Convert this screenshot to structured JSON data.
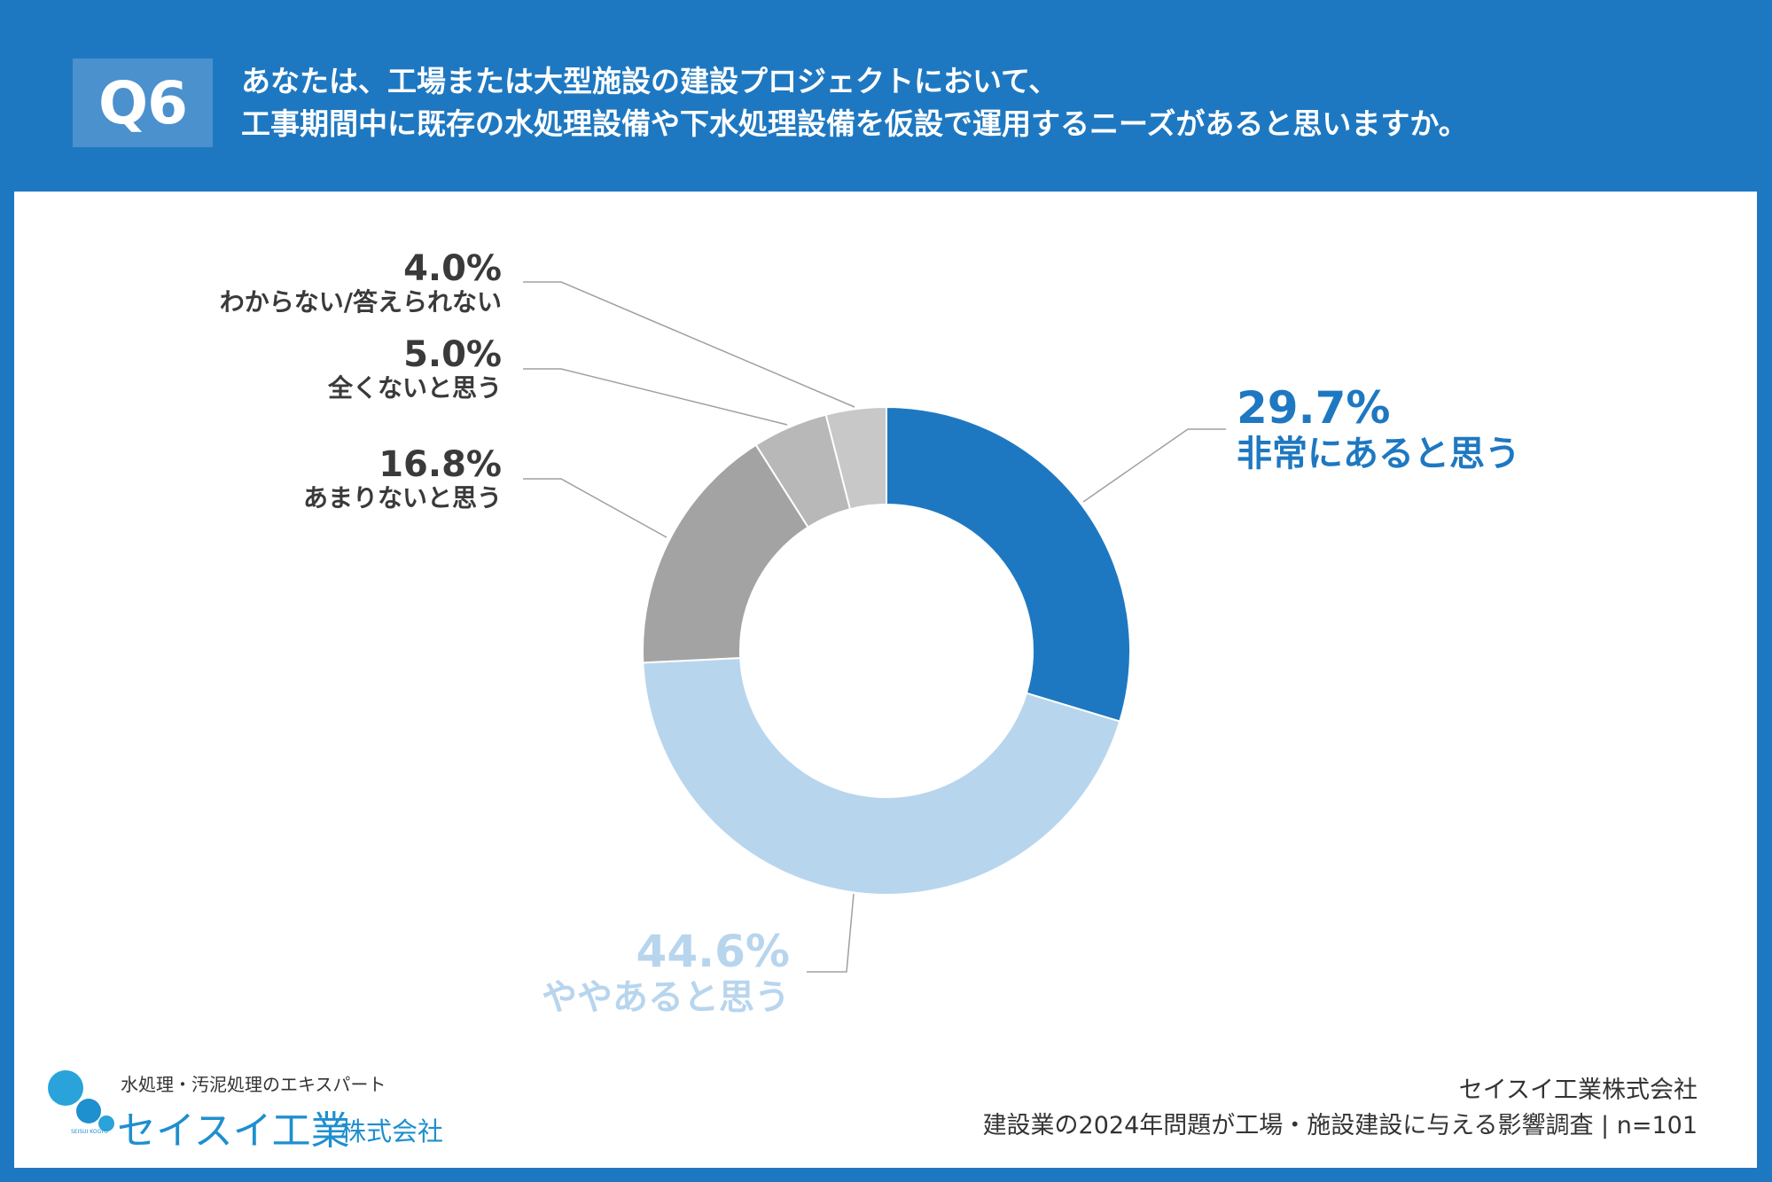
{
  "header": {
    "badge": "Q6",
    "question_line1": "あなたは、工場または大型施設の建設プロジェクトにおいて、",
    "question_line2": "工事期間中に既存の水処理設備や下水処理設備を仮設で運用するニーズがあると思いますか。"
  },
  "chart_data": {
    "type": "pie",
    "donut": true,
    "start": "top, clockwise",
    "slices": [
      {
        "label": "非常にあると思う",
        "value": 29.7,
        "display": "29.7%",
        "color": "#1e78c1"
      },
      {
        "label": "ややあると思う",
        "value": 44.6,
        "display": "44.6%",
        "color": "#b8d5ee"
      },
      {
        "label": "あまりないと思う",
        "value": 16.8,
        "display": "16.8%",
        "color": "#a3a3a3"
      },
      {
        "label": "全くないと思う",
        "value": 5.0,
        "display": "5.0%",
        "color": "#b8b8b8"
      },
      {
        "label": "わからない/答えられない",
        "value": 4.0,
        "display": "4.0%",
        "color": "#c8c8c8"
      }
    ]
  },
  "logo": {
    "tagline": "水処理・汚泥処理のエキスパート",
    "brand": "セイスイ工業",
    "brand_sub": "株式会社",
    "mark_text": "SEISUI KOGYO"
  },
  "footer": {
    "company": "セイスイ工業株式会社",
    "survey": "建設業の2024年問題が工場・施設建設に与える影響調査 | n=101"
  }
}
